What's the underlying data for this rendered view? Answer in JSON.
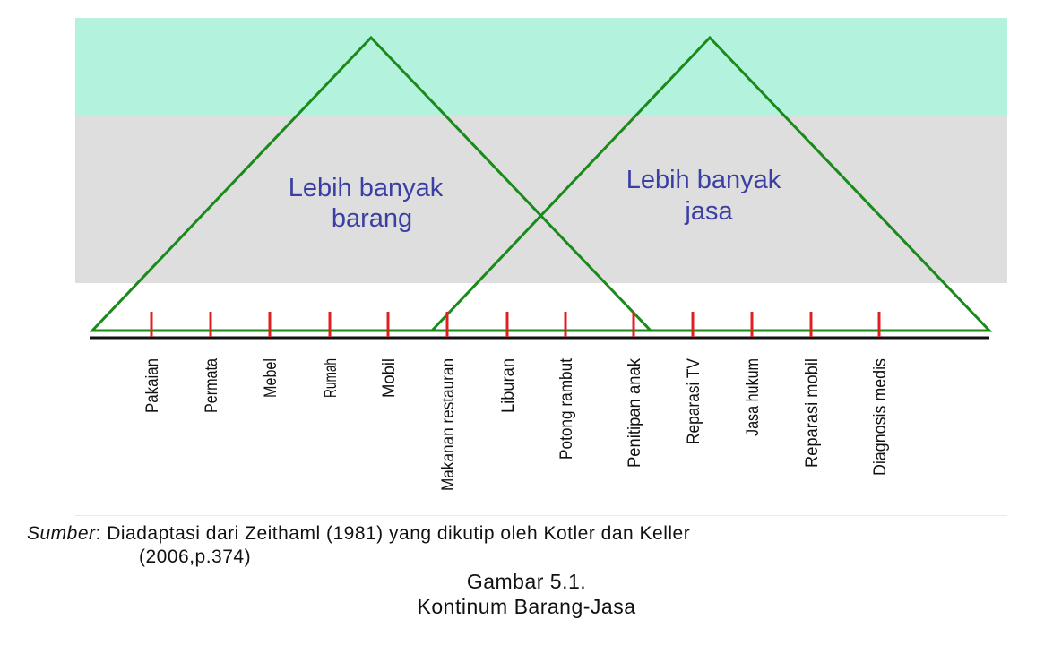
{
  "diagram": {
    "left_triangle_label": [
      "Lebih banyak",
      "barang"
    ],
    "right_triangle_label": [
      "Lebih banyak",
      "jasa"
    ],
    "items": [
      "Pakaian",
      "Permata",
      "Mebel",
      "Rumah",
      "Mobil",
      "Makanan restauran",
      "Liburan",
      "Potong rambut",
      "Penitipan anak",
      "Reparasi TV",
      "Jasa hukum",
      "Reparasi mobil",
      "Diagnosis medis"
    ],
    "colors": {
      "top_band": "#b3f2dd",
      "middle_band": "#dedede",
      "triangle_stroke": "#1a8a1a",
      "tick": "#e02020",
      "axis": "#111111",
      "label_text": "#3b3fa3"
    }
  },
  "caption": {
    "source_prefix": "Sumber",
    "source_text": ": Diadaptasi dari Zeithaml (1981) yang dikutip oleh Kotler dan Keller",
    "source_text_cont": "(2006,p.374)",
    "figure_number": "Gambar 5.1.",
    "figure_title": "Kontinum Barang-Jasa"
  }
}
